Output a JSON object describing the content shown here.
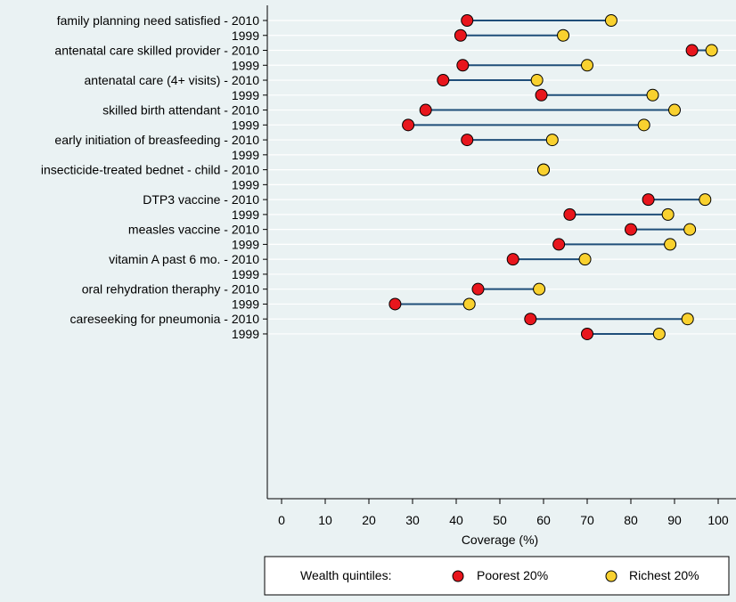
{
  "chart_data": {
    "type": "dumbbell",
    "title": "",
    "xlabel": "Coverage (%)",
    "ylabel": "",
    "xlim": [
      -2,
      101
    ],
    "xticks": [
      0,
      10,
      20,
      30,
      40,
      50,
      60,
      70,
      80,
      90,
      100
    ],
    "grid": true,
    "legend": {
      "title": "Wealth quintiles:",
      "placement": "bottom",
      "entries": [
        {
          "name": "Poorest 20%",
          "color": "#e8161d"
        },
        {
          "name": "Richest 20%",
          "color": "#f9d12f"
        }
      ]
    },
    "colors": {
      "poorest": "#e8161d",
      "richest": "#f9d12f",
      "connector": "#1f4e79",
      "grid": "#ffffff",
      "background": "#eaf2f3",
      "marker_edge": "#000000"
    },
    "rows": [
      {
        "label": "family planning need satisfied - 2010",
        "poorest": 42.5,
        "richest": 75.5
      },
      {
        "label": "1999",
        "poorest": 41,
        "richest": 64.5
      },
      {
        "label": "antenatal care skilled provider - 2010",
        "poorest": 94,
        "richest": 98.5
      },
      {
        "label": "1999",
        "poorest": 41.5,
        "richest": 70
      },
      {
        "label": "antenatal care (4+ visits) - 2010",
        "poorest": 37,
        "richest": 58.5
      },
      {
        "label": "1999",
        "poorest": 59.5,
        "richest": 85
      },
      {
        "label": "skilled birth attendant - 2010",
        "poorest": 33,
        "richest": 90
      },
      {
        "label": "1999",
        "poorest": 29,
        "richest": 83
      },
      {
        "label": "early initiation of breasfeeding - 2010",
        "poorest": 42.5,
        "richest": 62
      },
      {
        "label": "1999",
        "poorest": null,
        "richest": null
      },
      {
        "label": "insecticide-treated bednet - child - 2010",
        "poorest": 60,
        "richest": 60
      },
      {
        "label": "1999",
        "poorest": null,
        "richest": null
      },
      {
        "label": "DTP3 vaccine - 2010",
        "poorest": 84,
        "richest": 97
      },
      {
        "label": "1999",
        "poorest": 66,
        "richest": 88.5
      },
      {
        "label": "measles vaccine - 2010",
        "poorest": 80,
        "richest": 93.5
      },
      {
        "label": "1999",
        "poorest": 63.5,
        "richest": 89
      },
      {
        "label": "vitamin A past 6 mo. - 2010",
        "poorest": 53,
        "richest": 69.5
      },
      {
        "label": "1999",
        "poorest": null,
        "richest": null
      },
      {
        "label": "oral rehydration theraphy - 2010",
        "poorest": 45,
        "richest": 59
      },
      {
        "label": "1999",
        "poorest": 26,
        "richest": 43
      },
      {
        "label": "careseeking for pneumonia - 2010",
        "poorest": 57,
        "richest": 93
      },
      {
        "label": "1999",
        "poorest": 70,
        "richest": 86.5
      }
    ]
  }
}
